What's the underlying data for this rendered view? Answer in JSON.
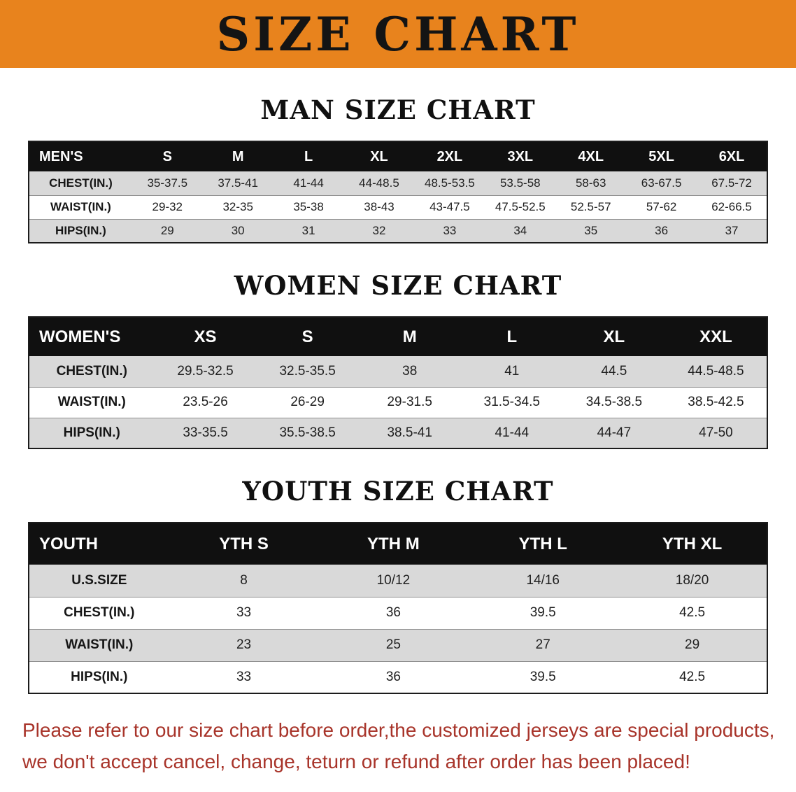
{
  "banner": {
    "title": "SIZE CHART",
    "bg_color": "#E8831D",
    "text_color": "#141414"
  },
  "sections": [
    {
      "id": "mens",
      "heading": "MAN SIZE CHART",
      "table": {
        "header": [
          "MEN'S",
          "S",
          "M",
          "L",
          "XL",
          "2XL",
          "3XL",
          "4XL",
          "5XL",
          "6XL"
        ],
        "rows": [
          [
            "CHEST(IN.)",
            "35-37.5",
            "37.5-41",
            "41-44",
            "44-48.5",
            "48.5-53.5",
            "53.5-58",
            "58-63",
            "63-67.5",
            "67.5-72"
          ],
          [
            "WAIST(IN.)",
            "29-32",
            "32-35",
            "35-38",
            "38-43",
            "43-47.5",
            "47.5-52.5",
            "52.5-57",
            "57-62",
            "62-66.5"
          ],
          [
            "HIPS(IN.)",
            "29",
            "30",
            "31",
            "32",
            "33",
            "34",
            "35",
            "36",
            "37"
          ]
        ]
      }
    },
    {
      "id": "womens",
      "heading": "WOMEN SIZE CHART",
      "table": {
        "header": [
          "WOMEN'S",
          "XS",
          "S",
          "M",
          "L",
          "XL",
          "XXL"
        ],
        "rows": [
          [
            "CHEST(IN.)",
            "29.5-32.5",
            "32.5-35.5",
            "38",
            "41",
            "44.5",
            "44.5-48.5"
          ],
          [
            "WAIST(IN.)",
            "23.5-26",
            "26-29",
            "29-31.5",
            "31.5-34.5",
            "34.5-38.5",
            "38.5-42.5"
          ],
          [
            "HIPS(IN.)",
            "33-35.5",
            "35.5-38.5",
            "38.5-41",
            "41-44",
            "44-47",
            "47-50"
          ]
        ]
      }
    },
    {
      "id": "youth",
      "heading": "YOUTH SIZE CHART",
      "table": {
        "header": [
          "YOUTH",
          "YTH S",
          "YTH M",
          "YTH L",
          "YTH XL"
        ],
        "rows": [
          [
            "U.S.SIZE",
            "8",
            "10/12",
            "14/16",
            "18/20"
          ],
          [
            "CHEST(IN.)",
            "33",
            "36",
            "39.5",
            "42.5"
          ],
          [
            "WAIST(IN.)",
            "23",
            "25",
            "27",
            "29"
          ],
          [
            "HIPS(IN.)",
            "33",
            "36",
            "39.5",
            "42.5"
          ]
        ]
      }
    }
  ],
  "disclaimer": {
    "line1": "Please refer to our size chart before order,the customized jerseys are special products,",
    "line2": "we don't accept cancel, change, teturn or refund after order has been placed!",
    "color": "#a8342a"
  }
}
